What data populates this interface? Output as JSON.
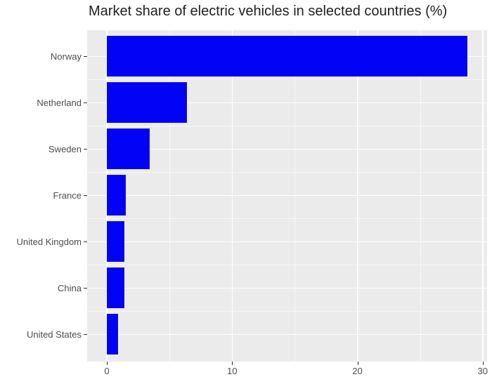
{
  "chart_data": {
    "type": "bar",
    "orientation": "horizontal",
    "title": "Market share of electric vehicles in selected countries (%)",
    "categories": [
      "Norway",
      "Netherland",
      "Sweden",
      "France",
      "United Kingdom",
      "China",
      "United States"
    ],
    "values": [
      28.8,
      6.4,
      3.4,
      1.5,
      1.4,
      1.4,
      0.9
    ],
    "xlabel": "",
    "ylabel": "",
    "x_tick_labels": [
      "0",
      "10",
      "20",
      "30"
    ],
    "x_tick_values": [
      0,
      10,
      20,
      30
    ],
    "x_minor_values": [
      5,
      15,
      25
    ],
    "xlim": [
      -1.57,
      30.35
    ],
    "grid": "on",
    "legend_position": "none",
    "colors": {
      "bar_fill": "#0202F7",
      "bar_border": "#1414C8",
      "panel_background": "#EBEBEB",
      "gridline": "#FFFFFF",
      "axis_text": "#4D4D4D",
      "title_text": "#212121",
      "tick_mark": "#333333",
      "figure_background": "#FFFFFF"
    }
  }
}
